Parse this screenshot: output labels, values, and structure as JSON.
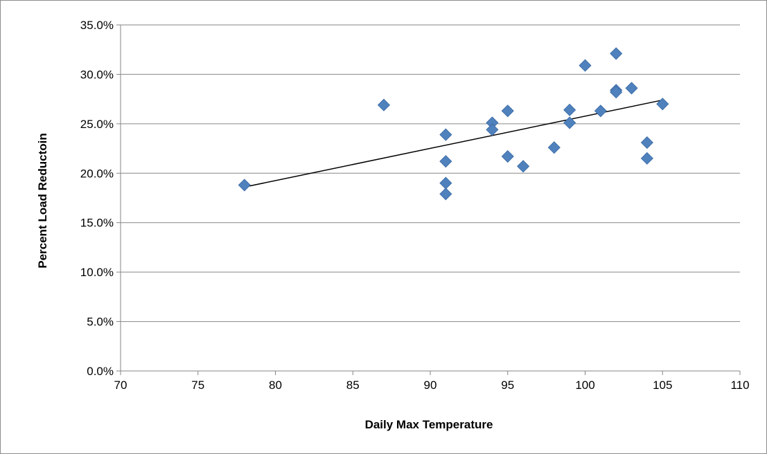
{
  "chart_data": {
    "type": "scatter",
    "title": "",
    "xlabel": "Daily Max Temperature",
    "ylabel": "Percent Load Reductoin",
    "xlim": [
      70,
      110
    ],
    "ylim": [
      0.0,
      35.0
    ],
    "x_ticks": [
      70,
      75,
      80,
      85,
      90,
      95,
      100,
      105,
      110
    ],
    "y_ticks": [
      0.0,
      5.0,
      10.0,
      15.0,
      20.0,
      25.0,
      30.0,
      35.0
    ],
    "y_tick_labels": [
      "0.0%",
      "5.0%",
      "10.0%",
      "15.0%",
      "20.0%",
      "25.0%",
      "30.0%",
      "35.0%"
    ],
    "grid": "horizontal",
    "legend": "none",
    "marker_color": "#4f81bd",
    "trendline_color": "#000000",
    "points": [
      {
        "x": 78,
        "y": 18.8
      },
      {
        "x": 87,
        "y": 26.9
      },
      {
        "x": 91,
        "y": 23.9
      },
      {
        "x": 91,
        "y": 21.2
      },
      {
        "x": 91,
        "y": 19.0
      },
      {
        "x": 91,
        "y": 17.9
      },
      {
        "x": 94,
        "y": 25.1
      },
      {
        "x": 94,
        "y": 24.4
      },
      {
        "x": 95,
        "y": 26.3
      },
      {
        "x": 95,
        "y": 21.7
      },
      {
        "x": 96,
        "y": 20.7
      },
      {
        "x": 98,
        "y": 22.6
      },
      {
        "x": 99,
        "y": 26.4
      },
      {
        "x": 99,
        "y": 25.1
      },
      {
        "x": 100,
        "y": 30.9
      },
      {
        "x": 101,
        "y": 26.3
      },
      {
        "x": 102,
        "y": 32.1
      },
      {
        "x": 102,
        "y": 28.4
      },
      {
        "x": 102,
        "y": 28.2
      },
      {
        "x": 103,
        "y": 28.6
      },
      {
        "x": 104,
        "y": 23.1
      },
      {
        "x": 104,
        "y": 21.5
      },
      {
        "x": 105,
        "y": 27.0
      }
    ],
    "trendline": {
      "x": [
        78,
        105
      ],
      "y": [
        18.6,
        27.4
      ]
    }
  }
}
